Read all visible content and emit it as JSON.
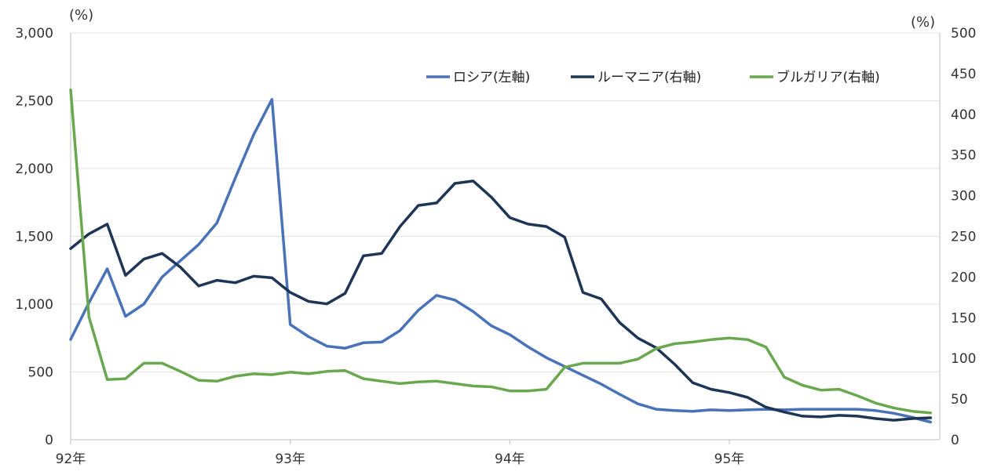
{
  "chart_data": {
    "type": "line",
    "left_unit": "(%)",
    "right_unit": "(%)",
    "left_axis": {
      "min": 0,
      "max": 3000,
      "step": 500,
      "ticks": [
        "0",
        "500",
        "1,000",
        "1,500",
        "2,000",
        "2,500",
        "3,000"
      ]
    },
    "right_axis": {
      "min": 0,
      "max": 500,
      "step": 50,
      "ticks": [
        "0",
        "50",
        "100",
        "150",
        "200",
        "250",
        "300",
        "350",
        "400",
        "450",
        "500"
      ]
    },
    "x_start": "1992-01",
    "x_end": "1995-12",
    "x_tick_labels": [
      "92年",
      "93年",
      "94年",
      "95年"
    ],
    "grid": true,
    "legend_position": "top-right",
    "series": [
      {
        "name": "ロシア(左軸)",
        "axis": "left",
        "color": "#4a72b8",
        "values": [
          740,
          1010,
          1260,
          910,
          1000,
          1200,
          1320,
          1440,
          1600,
          1930,
          2250,
          2510,
          850,
          760,
          690,
          675,
          715,
          720,
          805,
          955,
          1065,
          1030,
          945,
          840,
          775,
          685,
          605,
          540,
          475,
          410,
          335,
          265,
          225,
          215,
          210,
          220,
          215,
          220,
          225,
          220,
          225,
          225,
          225,
          225,
          215,
          195,
          165,
          130
        ]
      },
      {
        "name": "ルーマニア(右軸)",
        "axis": "right",
        "color": "#1f3556",
        "values": [
          235,
          253,
          265,
          202,
          222,
          229,
          212,
          189,
          196,
          193,
          201,
          199,
          181,
          170,
          167,
          180,
          226,
          229,
          262,
          288,
          291,
          315,
          318,
          298,
          273,
          265,
          262,
          249,
          181,
          173,
          144,
          125,
          113,
          93,
          70,
          62,
          58,
          52,
          40,
          34,
          29,
          28,
          30,
          29,
          26,
          24,
          26,
          27
        ]
      },
      {
        "name": "ブルガリア(右軸)",
        "axis": "right",
        "color": "#6aa84f",
        "values": [
          430,
          151,
          74,
          75,
          94,
          94,
          84,
          73,
          72,
          78,
          81,
          80,
          83,
          81,
          84,
          85,
          75,
          72,
          69,
          71,
          72,
          69,
          66,
          65,
          60,
          60,
          62,
          89,
          94,
          94,
          94,
          99,
          112,
          118,
          120,
          123,
          125,
          123,
          114,
          77,
          67,
          61,
          62,
          54,
          45,
          39,
          35,
          33
        ]
      }
    ]
  }
}
